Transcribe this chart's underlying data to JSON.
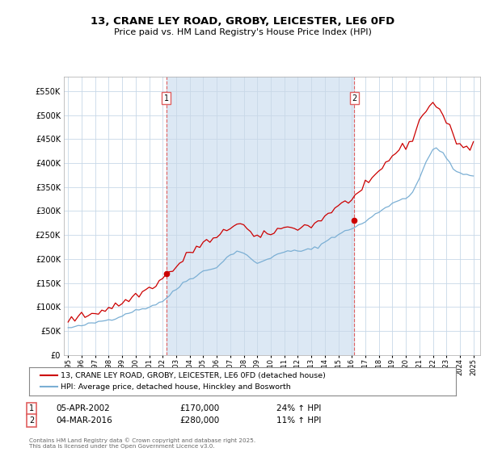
{
  "title": "13, CRANE LEY ROAD, GROBY, LEICESTER, LE6 0FD",
  "subtitle": "Price paid vs. HM Land Registry's House Price Index (HPI)",
  "ytick_values": [
    0,
    50000,
    100000,
    150000,
    200000,
    250000,
    300000,
    350000,
    400000,
    450000,
    500000,
    550000
  ],
  "ylim": [
    0,
    580000
  ],
  "xlim_start": 1994.7,
  "xlim_end": 2025.5,
  "sale1_x": 2002.26,
  "sale1_y": 170000,
  "sale1_label": "05-APR-2002",
  "sale1_price": "£170,000",
  "sale1_hpi": "24% ↑ HPI",
  "sale2_x": 2016.17,
  "sale2_y": 280000,
  "sale2_label": "04-MAR-2016",
  "sale2_price": "£280,000",
  "sale2_hpi": "11% ↑ HPI",
  "line1_color": "#cc0000",
  "line2_color": "#7bafd4",
  "vline_color": "#e06060",
  "grid_color": "#c8d8e8",
  "bg_color": "#dce8f4",
  "highlight_color": "#dce8f4",
  "legend1_text": "13, CRANE LEY ROAD, GROBY, LEICESTER, LE6 0FD (detached house)",
  "legend2_text": "HPI: Average price, detached house, Hinckley and Bosworth",
  "footer": "Contains HM Land Registry data © Crown copyright and database right 2025.\nThis data is licensed under the Open Government Licence v3.0.",
  "years_hpi": [
    1995.0,
    1995.25,
    1995.5,
    1995.75,
    1996.0,
    1996.25,
    1996.5,
    1996.75,
    1997.0,
    1997.25,
    1997.5,
    1997.75,
    1998.0,
    1998.25,
    1998.5,
    1998.75,
    1999.0,
    1999.25,
    1999.5,
    1999.75,
    2000.0,
    2000.25,
    2000.5,
    2000.75,
    2001.0,
    2001.25,
    2001.5,
    2001.75,
    2002.0,
    2002.25,
    2002.5,
    2002.75,
    2003.0,
    2003.25,
    2003.5,
    2003.75,
    2004.0,
    2004.25,
    2004.5,
    2004.75,
    2005.0,
    2005.25,
    2005.5,
    2005.75,
    2006.0,
    2006.25,
    2006.5,
    2006.75,
    2007.0,
    2007.25,
    2007.5,
    2007.75,
    2008.0,
    2008.25,
    2008.5,
    2008.75,
    2009.0,
    2009.25,
    2009.5,
    2009.75,
    2010.0,
    2010.25,
    2010.5,
    2010.75,
    2011.0,
    2011.25,
    2011.5,
    2011.75,
    2012.0,
    2012.25,
    2012.5,
    2012.75,
    2013.0,
    2013.25,
    2013.5,
    2013.75,
    2014.0,
    2014.25,
    2014.5,
    2014.75,
    2015.0,
    2015.25,
    2015.5,
    2015.75,
    2016.0,
    2016.25,
    2016.5,
    2016.75,
    2017.0,
    2017.25,
    2017.5,
    2017.75,
    2018.0,
    2018.25,
    2018.5,
    2018.75,
    2019.0,
    2019.25,
    2019.5,
    2019.75,
    2020.0,
    2020.25,
    2020.5,
    2020.75,
    2021.0,
    2021.25,
    2021.5,
    2021.75,
    2022.0,
    2022.25,
    2022.5,
    2022.75,
    2023.0,
    2023.25,
    2023.5,
    2023.75,
    2024.0,
    2024.25,
    2024.5,
    2024.75,
    2025.0
  ],
  "hpi_base": [
    56000,
    57000,
    58000,
    59000,
    61000,
    62500,
    64000,
    65500,
    67000,
    69000,
    71000,
    72000,
    73000,
    75000,
    77000,
    79000,
    82000,
    85000,
    88000,
    91000,
    92000,
    94000,
    96000,
    98000,
    100000,
    103000,
    106000,
    109000,
    112000,
    118000,
    124000,
    130000,
    136000,
    143000,
    150000,
    155000,
    158000,
    162000,
    166000,
    170000,
    174000,
    176000,
    178000,
    180000,
    184000,
    190000,
    196000,
    202000,
    208000,
    213000,
    216000,
    215000,
    213000,
    207000,
    200000,
    194000,
    192000,
    194000,
    196000,
    198000,
    202000,
    207000,
    212000,
    214000,
    213000,
    215000,
    216000,
    217000,
    216000,
    217000,
    218000,
    219000,
    220000,
    223000,
    226000,
    230000,
    235000,
    240000,
    245000,
    248000,
    251000,
    254000,
    257000,
    261000,
    264000,
    267000,
    270000,
    273000,
    278000,
    283000,
    288000,
    293000,
    298000,
    303000,
    308000,
    312000,
    316000,
    319000,
    322000,
    326000,
    328000,
    332000,
    340000,
    355000,
    368000,
    385000,
    400000,
    415000,
    428000,
    432000,
    428000,
    422000,
    410000,
    398000,
    388000,
    382000,
    380000,
    378000,
    375000,
    373000,
    372000
  ],
  "price_base": [
    72000,
    74000,
    76000,
    78000,
    80000,
    82000,
    84000,
    86000,
    88000,
    91000,
    93000,
    95000,
    97000,
    100000,
    102000,
    105000,
    108000,
    112000,
    116000,
    120000,
    123000,
    127000,
    131000,
    135000,
    138000,
    143000,
    148000,
    153000,
    158000,
    167000,
    172000,
    177000,
    182000,
    190000,
    198000,
    206000,
    212000,
    218000,
    224000,
    228000,
    232000,
    236000,
    238000,
    240000,
    243000,
    248000,
    254000,
    260000,
    266000,
    272000,
    276000,
    274000,
    270000,
    262000,
    254000,
    247000,
    244000,
    246000,
    248000,
    250000,
    254000,
    258000,
    262000,
    264000,
    263000,
    265000,
    266000,
    267000,
    266000,
    267000,
    268000,
    269000,
    270000,
    274000,
    278000,
    283000,
    289000,
    295000,
    301000,
    305000,
    309000,
    313000,
    317000,
    322000,
    327000,
    332000,
    337000,
    342000,
    349000,
    357000,
    365000,
    373000,
    381000,
    390000,
    399000,
    408000,
    416000,
    422000,
    427000,
    432000,
    436000,
    442000,
    452000,
    470000,
    486000,
    500000,
    512000,
    522000,
    524000,
    520000,
    512000,
    500000,
    486000,
    472000,
    458000,
    448000,
    440000,
    435000,
    432000,
    430000,
    445000
  ]
}
